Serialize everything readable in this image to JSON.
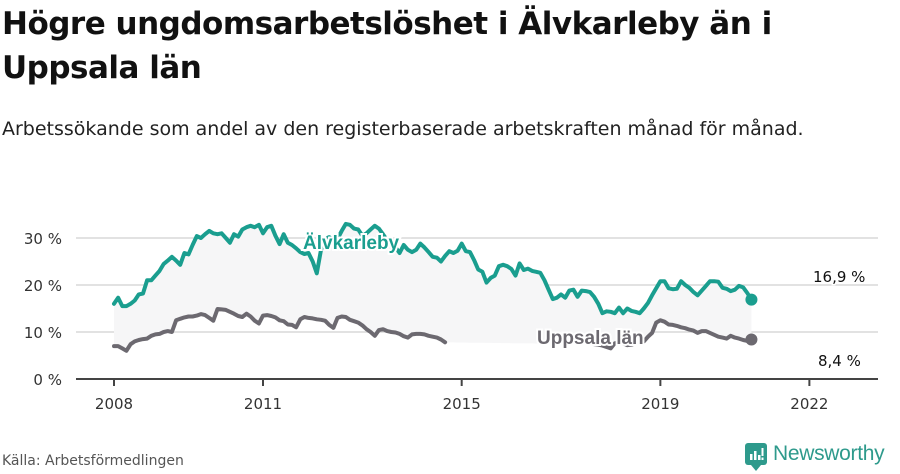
{
  "header": {
    "title": "Högre ungdomsarbetslöshet i Älvkarleby än i Uppsala län",
    "subtitle": "Arbetssökande som andel av den registerbaserade arbetskraften månad för månad."
  },
  "footer": {
    "source": "Källa: Arbetsförmedlingen",
    "logo_text": "Newsworthy",
    "logo_icon": "newsworthy-bar-chart-icon"
  },
  "colors": {
    "alvkarleby": "#1a9e8f",
    "uppsala": "#6c6970",
    "band": "#f6f6f7",
    "grid": "#e2e2e2",
    "axis": "#444444"
  },
  "chart_data": {
    "type": "line",
    "title": "Högre ungdomsarbetslöshet i Älvkarleby än i Uppsala län",
    "subtitle": "Arbetssökande som andel av den registerbaserade arbetskraften månad för månad.",
    "xlabel": "",
    "ylabel": "",
    "ylim": [
      0,
      35
    ],
    "y_ticks": [
      "0 %",
      "10 %",
      "20 %",
      "30 %"
    ],
    "y_tick_values": [
      0,
      10,
      20,
      30
    ],
    "x_ticks": [
      "2008",
      "2011",
      "2015",
      "2019",
      "2022"
    ],
    "x_tick_values": [
      2008,
      2011,
      2015,
      2019,
      2022
    ],
    "grid": true,
    "legend": "inline labels",
    "x_start": 2008.0,
    "x_step_months": 1,
    "series": [
      {
        "name": "Älvkarleby",
        "label": "Älvkarleby",
        "end_label": "16,9 %",
        "values": [
          16.0,
          17.3,
          15.5,
          15.5,
          16.0,
          16.7,
          18.0,
          18.2,
          21.0,
          21.0,
          22.0,
          23.0,
          24.5,
          25.2,
          26.0,
          25.2,
          24.3,
          26.8,
          26.5,
          28.5,
          30.4,
          30.0,
          30.8,
          31.5,
          31.0,
          30.8,
          31.0,
          30.0,
          29.0,
          30.8,
          30.3,
          31.8,
          32.3,
          32.6,
          32.3,
          32.8,
          31.0,
          32.3,
          32.6,
          30.5,
          28.7,
          30.8,
          29.0,
          28.5,
          27.8,
          27.0,
          26.6,
          26.8,
          25.0,
          22.5,
          27.5,
          29.8,
          30.2,
          29.5,
          29.8,
          31.5,
          33.0,
          32.8,
          32.0,
          31.8,
          30.5,
          31.0,
          31.8,
          32.6,
          32.0,
          30.8,
          29.5,
          29.8,
          28.0,
          26.8,
          28.5,
          27.5,
          27.0,
          27.5,
          28.8,
          28.0,
          27.0,
          26.0,
          25.8,
          25.0,
          26.2,
          27.2,
          26.8,
          27.3,
          28.8,
          27.2,
          27.0,
          25.3,
          23.3,
          22.8,
          20.5,
          21.5,
          22.0,
          24.0,
          24.3,
          24.0,
          23.4,
          22.0,
          24.6,
          23.2,
          23.5,
          23.0,
          22.8,
          22.6,
          21.0,
          19.0,
          17.0,
          17.3,
          18.0,
          17.3,
          18.8,
          19.0,
          17.5,
          18.8,
          18.7,
          18.5,
          17.5,
          16.0,
          14.0,
          14.4,
          14.3,
          14.0,
          15.2,
          14.0,
          15.0,
          14.5,
          14.3,
          14.0,
          15.0,
          16.2,
          17.8,
          19.3,
          20.8,
          20.8,
          19.3,
          19.1,
          19.2,
          20.8,
          20.0,
          19.4,
          18.5,
          17.8,
          18.8,
          19.8,
          20.8,
          20.8,
          20.7,
          19.4,
          19.2,
          18.7,
          19.0,
          19.8,
          19.5,
          18.3,
          16.9
        ],
        "color": "#1a9e8f"
      },
      {
        "name": "Uppsala län",
        "label": "Uppsala län",
        "end_label": "8,4 %",
        "values": [
          7.0,
          7.0,
          6.5,
          6.0,
          7.4,
          8.0,
          8.3,
          8.5,
          8.6,
          9.2,
          9.5,
          9.6,
          10.0,
          10.2,
          10.0,
          12.5,
          12.8,
          13.1,
          13.3,
          13.3,
          13.5,
          13.8,
          13.6,
          13.0,
          12.4,
          14.9,
          14.8,
          14.7,
          14.3,
          13.9,
          13.4,
          13.2,
          13.9,
          13.3,
          12.4,
          11.8,
          13.5,
          13.6,
          13.4,
          13.1,
          12.5,
          12.3,
          11.6,
          11.5,
          11.0,
          12.7,
          13.2,
          13.0,
          12.9,
          12.7,
          12.6,
          12.4,
          11.5,
          10.9,
          13.0,
          13.3,
          13.2,
          12.6,
          12.3,
          12.0,
          11.4,
          10.6,
          10.0,
          9.2,
          10.4,
          10.6,
          10.2,
          10.0,
          9.9,
          9.6,
          9.1,
          8.8,
          9.5,
          9.6,
          9.6,
          9.5,
          9.2,
          9.0,
          8.8,
          8.4,
          7.8,
          null,
          null,
          null,
          null,
          null,
          null,
          null,
          null,
          null,
          null,
          null,
          null,
          null,
          null,
          null,
          null,
          null,
          null,
          null,
          null,
          null,
          null,
          null,
          null,
          null,
          null,
          null,
          null,
          null,
          null,
          null,
          null,
          null,
          null,
          null,
          7.4,
          7.3,
          7.1,
          6.8,
          6.5,
          7.6,
          7.8,
          7.6,
          7.2,
          7.3,
          7.6,
          7.7,
          8.0,
          9.0,
          9.8,
          12.0,
          12.5,
          12.2,
          11.6,
          11.5,
          11.3,
          11.0,
          10.8,
          10.5,
          10.3,
          9.8,
          10.2,
          10.2,
          9.8,
          9.4,
          9.0,
          8.8,
          8.6,
          9.2,
          8.8,
          8.6,
          8.3,
          8.1,
          8.4
        ],
        "color": "#6c6970"
      }
    ],
    "annotations": [
      {
        "text": "Älvkarleby",
        "series": "Älvkarleby"
      },
      {
        "text": "Uppsala län",
        "series": "Uppsala län"
      },
      {
        "text": "16,9 %",
        "series": "Älvkarleby",
        "position": "last point"
      },
      {
        "text": "8,4 %",
        "series": "Uppsala län",
        "position": "last point"
      }
    ]
  }
}
